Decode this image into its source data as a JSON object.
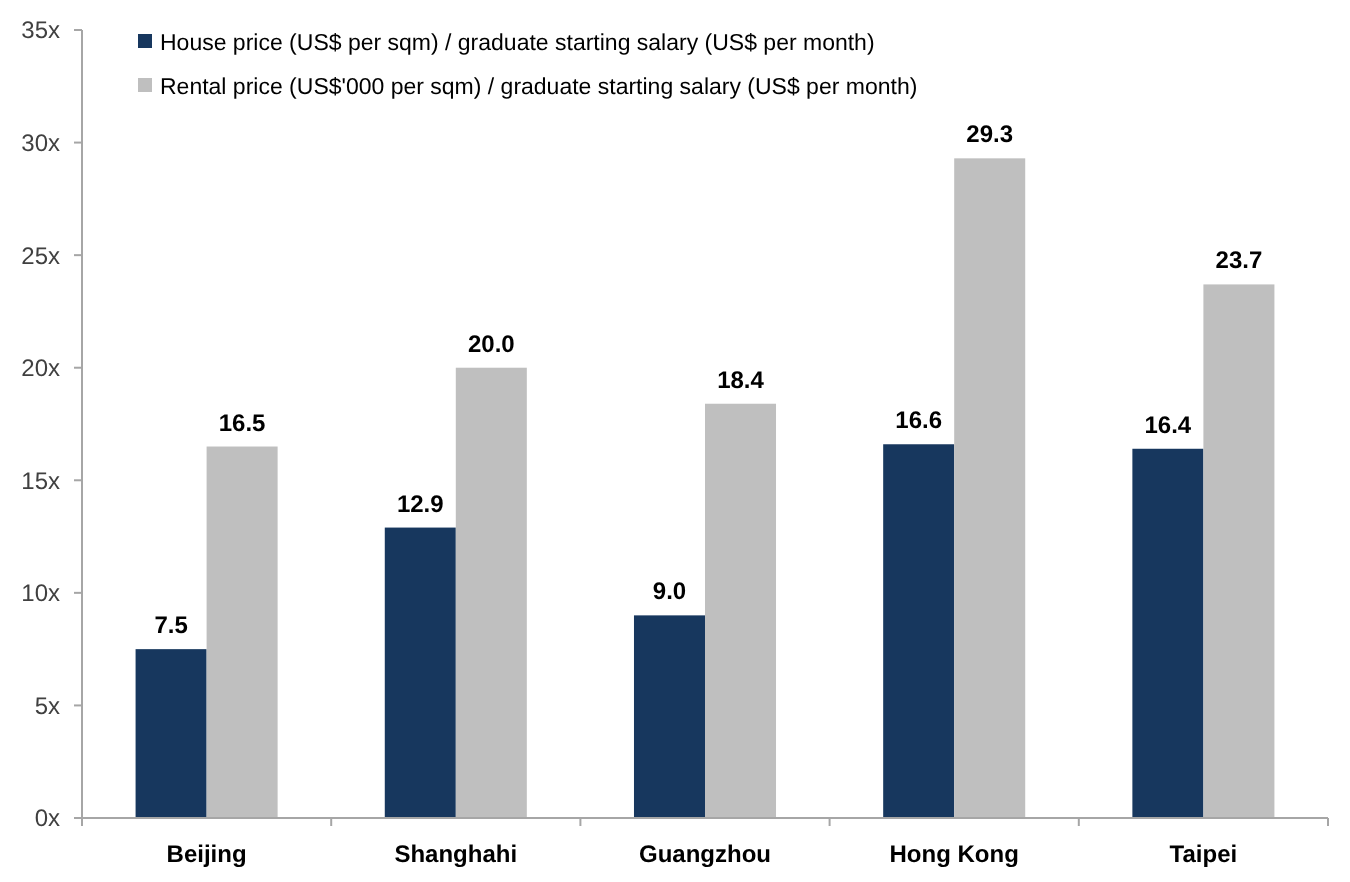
{
  "chart_data": {
    "type": "bar",
    "categories": [
      "Beijing",
      "Shanghahi",
      "Guangzhou",
      "Hong Kong",
      "Taipei"
    ],
    "series": [
      {
        "name": "House price (US$ per sqm) / graduate starting salary (US$ per month)",
        "color": "#17375e",
        "values": [
          7.5,
          12.9,
          9.0,
          16.6,
          16.4
        ],
        "value_labels": [
          "7.5",
          "12.9",
          "9.0",
          "16.6",
          "16.4"
        ]
      },
      {
        "name": "Rental price (US$'000 per sqm) / graduate starting salary (US$ per month)",
        "color": "#bfbfbf",
        "values": [
          16.5,
          20.0,
          18.4,
          29.3,
          23.7
        ],
        "value_labels": [
          "16.5",
          "20.0",
          "18.4",
          "29.3",
          "23.7"
        ]
      }
    ],
    "ylim": [
      0,
      35
    ],
    "yticks": [
      {
        "value": 0,
        "label": "0x"
      },
      {
        "value": 5,
        "label": "5x"
      },
      {
        "value": 10,
        "label": "10x"
      },
      {
        "value": 15,
        "label": "15x"
      },
      {
        "value": 20,
        "label": "20x"
      },
      {
        "value": 25,
        "label": "25x"
      },
      {
        "value": 30,
        "label": "30x"
      },
      {
        "value": 35,
        "label": "35x"
      }
    ],
    "legend": "top left"
  }
}
